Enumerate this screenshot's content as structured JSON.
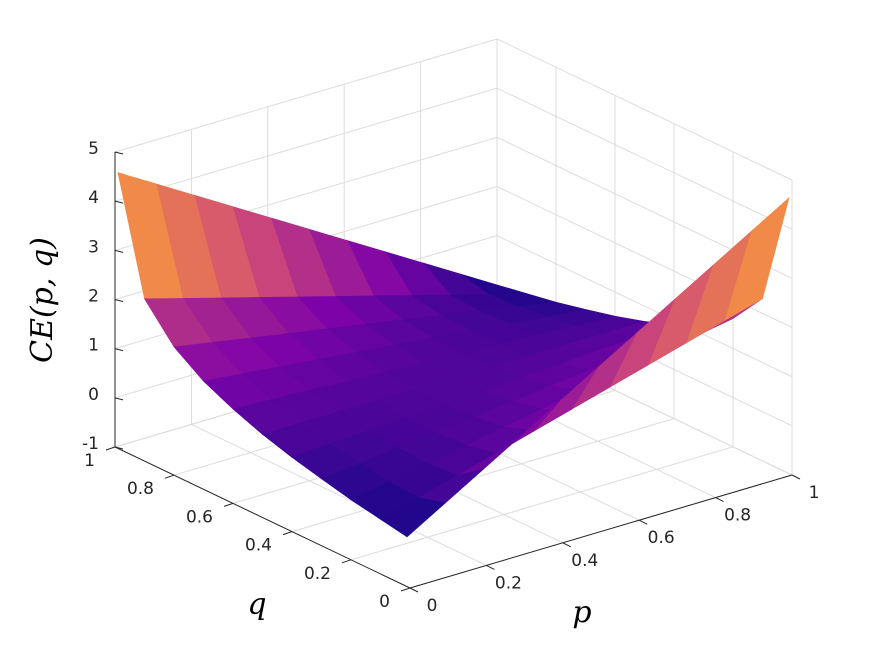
{
  "chart_data": {
    "type": "surface",
    "xlabel": "p",
    "ylabel": "q",
    "zlabel": "CE(p, q)",
    "x": [
      0,
      0.1,
      0.2,
      0.3,
      0.4,
      0.5,
      0.6,
      0.7,
      0.8,
      0.9,
      1
    ],
    "y": [
      0.01,
      0.1,
      0.2,
      0.3,
      0.4,
      0.5,
      0.6,
      0.7,
      0.8,
      0.9,
      0.99
    ],
    "z": [
      [
        0.01,
        0.47,
        0.93,
        1.39,
        1.85,
        2.31,
        2.77,
        3.23,
        3.69,
        4.15,
        4.61
      ],
      [
        0.11,
        0.32,
        0.54,
        0.76,
        0.98,
        1.2,
        1.42,
        1.64,
        1.86,
        2.08,
        2.3
      ],
      [
        0.22,
        0.36,
        0.5,
        0.64,
        0.78,
        0.92,
        1.06,
        1.19,
        1.33,
        1.47,
        1.61
      ],
      [
        0.36,
        0.44,
        0.53,
        0.61,
        0.7,
        0.78,
        0.87,
        0.95,
        1.03,
        1.12,
        1.2
      ],
      [
        0.51,
        0.55,
        0.59,
        0.63,
        0.67,
        0.71,
        0.75,
        0.79,
        0.84,
        0.88,
        0.92
      ],
      [
        0.69,
        0.69,
        0.69,
        0.69,
        0.69,
        0.69,
        0.69,
        0.69,
        0.69,
        0.69,
        0.69
      ],
      [
        0.92,
        0.88,
        0.84,
        0.79,
        0.75,
        0.71,
        0.67,
        0.63,
        0.59,
        0.55,
        0.51
      ],
      [
        1.2,
        1.12,
        1.03,
        0.95,
        0.87,
        0.78,
        0.7,
        0.61,
        0.53,
        0.44,
        0.36
      ],
      [
        1.61,
        1.47,
        1.33,
        1.19,
        1.06,
        0.92,
        0.78,
        0.64,
        0.5,
        0.36,
        0.22
      ],
      [
        2.3,
        2.08,
        1.86,
        1.64,
        1.42,
        1.2,
        0.98,
        0.76,
        0.54,
        0.32,
        0.11
      ],
      [
        4.61,
        4.15,
        3.69,
        3.23,
        2.77,
        2.31,
        1.85,
        1.39,
        0.93,
        0.47,
        0.01
      ]
    ],
    "xlim": [
      0,
      1
    ],
    "ylim": [
      0,
      1
    ],
    "zlim": [
      -1,
      5
    ],
    "xticks": [
      0,
      0.2,
      0.4,
      0.6,
      0.8,
      1
    ],
    "yticks": [
      0,
      0.2,
      0.4,
      0.6,
      0.8,
      1
    ],
    "zticks": [
      -1,
      0,
      1,
      2,
      3,
      4,
      5
    ],
    "grid": true,
    "colormap": [
      "#0d0887",
      "#7e03a8",
      "#cc4778",
      "#f89540",
      "#f0f921"
    ]
  }
}
